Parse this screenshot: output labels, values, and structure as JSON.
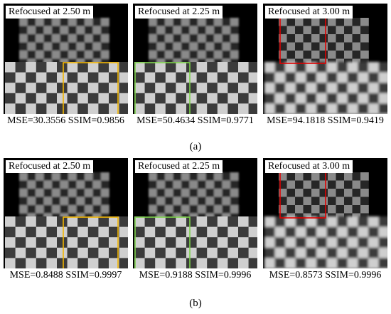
{
  "rows": [
    {
      "caption": "(a)",
      "panels": [
        {
          "title": "Refocused at 2.50 m",
          "metrics": "MSE=30.3556 SSIM=0.9856",
          "focus": "bottom",
          "box_color": "#f0b400",
          "box": "bottom-right"
        },
        {
          "title": "Refocused at 2.25 m",
          "metrics": "MSE=50.4634 SSIM=0.9771",
          "focus": "bottom",
          "box_color": "#7cd14a",
          "box": "bottom-left"
        },
        {
          "title": "Refocused at 3.00 m",
          "metrics": "MSE=94.1818 SSIM=0.9419",
          "focus": "top",
          "box_color": "#e00000",
          "box": "top-left"
        }
      ]
    },
    {
      "caption": "(b)",
      "panels": [
        {
          "title": "Refocused at 2.50 m",
          "metrics": "MSE=0.8488 SSIM=0.9997",
          "focus": "bottom",
          "box_color": "#f0b400",
          "box": "bottom-right"
        },
        {
          "title": "Refocused at 2.25 m",
          "metrics": "MSE=0.9188 SSIM=0.9996",
          "focus": "bottom",
          "box_color": "#7cd14a",
          "box": "bottom-left"
        },
        {
          "title": "Refocused at 3.00 m",
          "metrics": "MSE=0.8573 SSIM=0.9996",
          "focus": "top",
          "box_color": "#e00000",
          "box": "top-left"
        }
      ]
    }
  ]
}
